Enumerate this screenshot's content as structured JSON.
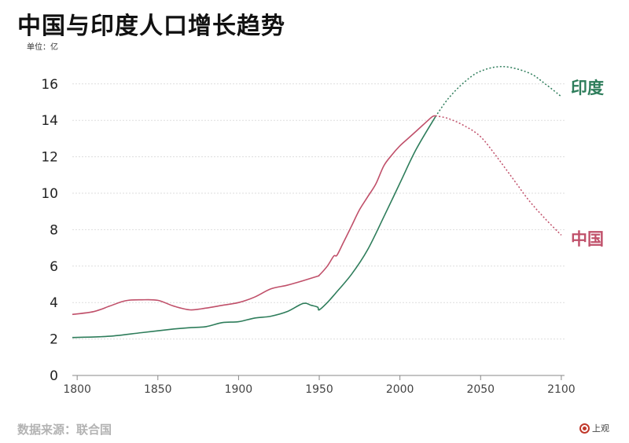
{
  "header": {
    "title": "中国与印度人口增长趋势",
    "unit": "单位：亿"
  },
  "footer": {
    "source": "数据来源：联合国",
    "logo_text": "上观"
  },
  "colors": {
    "china": "#c0506a",
    "india": "#2e7d5b",
    "grid": "#dddddd",
    "axis": "#888888"
  },
  "chart_data": {
    "type": "line",
    "title": "中国与印度人口增长趋势",
    "ylabel": "单位：亿",
    "xlim": [
      1797,
      2102
    ],
    "ylim": [
      0,
      17.5
    ],
    "x_ticks": [
      1800,
      1850,
      1900,
      1950,
      2000,
      2050,
      2100
    ],
    "y_ticks": [
      0,
      2,
      4,
      6,
      8,
      10,
      12,
      14,
      16
    ],
    "grid": "horizontal",
    "legend": "labels at line ends, right",
    "series": [
      {
        "name": "印度",
        "color": "#2e7d5b",
        "historical": [
          [
            1797,
            2.08
          ],
          [
            1820,
            2.15
          ],
          [
            1840,
            2.35
          ],
          [
            1860,
            2.55
          ],
          [
            1870,
            2.62
          ],
          [
            1880,
            2.68
          ],
          [
            1890,
            2.9
          ],
          [
            1900,
            2.95
          ],
          [
            1910,
            3.15
          ],
          [
            1920,
            3.25
          ],
          [
            1930,
            3.5
          ],
          [
            1940,
            3.95
          ],
          [
            1945,
            3.85
          ],
          [
            1949,
            3.75
          ],
          [
            1950,
            3.6
          ],
          [
            1955,
            4.0
          ],
          [
            1960,
            4.5
          ],
          [
            1970,
            5.55
          ],
          [
            1980,
            6.9
          ],
          [
            1990,
            8.7
          ],
          [
            2000,
            10.55
          ],
          [
            2010,
            12.4
          ],
          [
            2022,
            14.2
          ]
        ],
        "projection": [
          [
            2022,
            14.2
          ],
          [
            2030,
            15.2
          ],
          [
            2040,
            16.1
          ],
          [
            2050,
            16.7
          ],
          [
            2064,
            16.95
          ],
          [
            2080,
            16.6
          ],
          [
            2090,
            16.0
          ],
          [
            2100,
            15.3
          ]
        ]
      },
      {
        "name": "中国",
        "color": "#c0506a",
        "historical": [
          [
            1797,
            3.35
          ],
          [
            1810,
            3.5
          ],
          [
            1820,
            3.8
          ],
          [
            1830,
            4.1
          ],
          [
            1840,
            4.15
          ],
          [
            1850,
            4.12
          ],
          [
            1860,
            3.8
          ],
          [
            1870,
            3.6
          ],
          [
            1880,
            3.7
          ],
          [
            1890,
            3.85
          ],
          [
            1900,
            4.0
          ],
          [
            1910,
            4.3
          ],
          [
            1920,
            4.75
          ],
          [
            1930,
            4.95
          ],
          [
            1940,
            5.2
          ],
          [
            1949,
            5.45
          ],
          [
            1950,
            5.5
          ],
          [
            1955,
            6.0
          ],
          [
            1959,
            6.55
          ],
          [
            1961,
            6.6
          ],
          [
            1965,
            7.3
          ],
          [
            1970,
            8.2
          ],
          [
            1975,
            9.1
          ],
          [
            1980,
            9.8
          ],
          [
            1985,
            10.5
          ],
          [
            1990,
            11.5
          ],
          [
            1995,
            12.1
          ],
          [
            2000,
            12.6
          ],
          [
            2005,
            13.0
          ],
          [
            2010,
            13.4
          ],
          [
            2015,
            13.8
          ],
          [
            2020,
            14.2
          ],
          [
            2022,
            14.25
          ]
        ],
        "projection": [
          [
            2022,
            14.25
          ],
          [
            2030,
            14.1
          ],
          [
            2040,
            13.7
          ],
          [
            2050,
            13.1
          ],
          [
            2060,
            12.0
          ],
          [
            2070,
            10.8
          ],
          [
            2080,
            9.6
          ],
          [
            2090,
            8.6
          ],
          [
            2100,
            7.7
          ]
        ]
      }
    ]
  }
}
